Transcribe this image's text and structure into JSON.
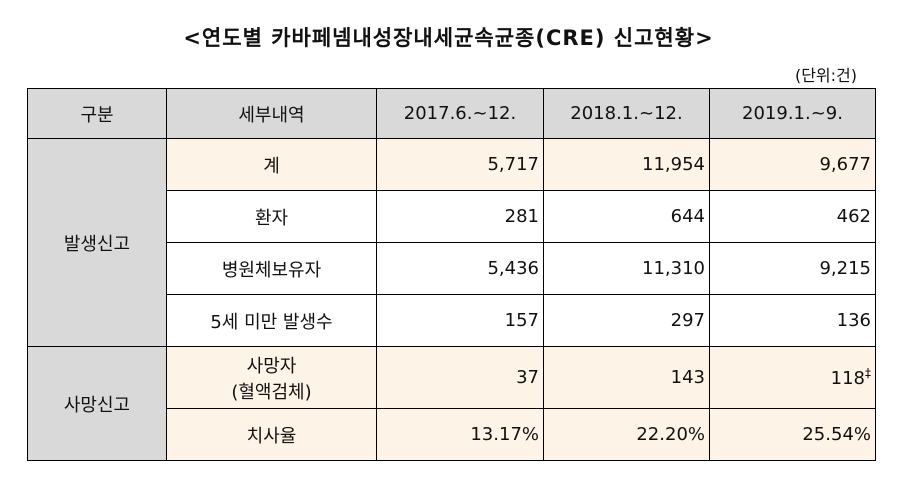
{
  "title": "<연도별 카바페넴내성장내세균속균종(CRE) 신고현황>",
  "unit": "(단위:건)",
  "headers": [
    "구분",
    "세부내역",
    "2017.6.~12.",
    "2018.1.~12.",
    "2019.1.~9."
  ],
  "groups": {
    "report": "발생신고",
    "death": "사망신고"
  },
  "rows": {
    "total": {
      "label": "계",
      "v1": "5,717",
      "v2": "11,954",
      "v3": "9,677"
    },
    "patient": {
      "label": "환자",
      "v1": "281",
      "v2": "644",
      "v3": "462"
    },
    "carrier": {
      "label": "병원체보유자",
      "v1": "5,436",
      "v2": "11,310",
      "v3": "9,215"
    },
    "under5": {
      "label": "5세 미만 발생수",
      "v1": "157",
      "v2": "297",
      "v3": "136"
    },
    "deaths": {
      "label1": "사망자",
      "label2": "(혈액검체)",
      "v1": "37",
      "v2": "143",
      "v3": "118",
      "v3_mark": "‡"
    },
    "fatality": {
      "label": "치사율",
      "v1": "13.17%",
      "v2": "22.20%",
      "v3": "25.54%"
    }
  }
}
